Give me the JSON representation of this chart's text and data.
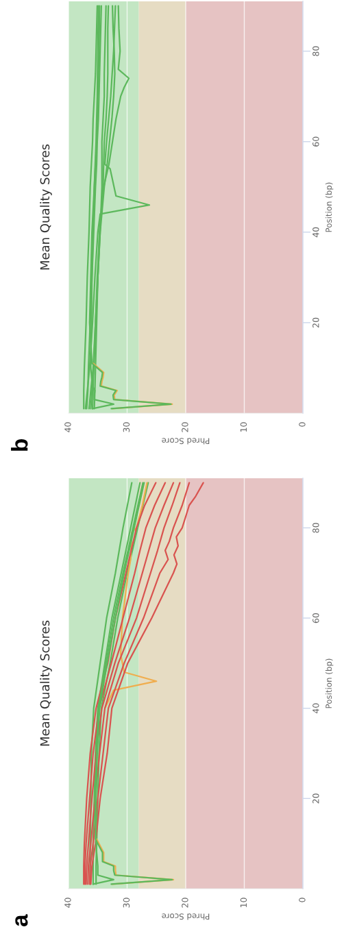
{
  "chart_data": [
    {
      "type": "line",
      "title": "Mean Quality Scores",
      "xlabel": "Phred Score",
      "ylabel": "Position (bp)",
      "annotations": [
        "b"
      ],
      "xlim": [
        40,
        0
      ],
      "ylim": [
        0,
        91
      ],
      "xticks": [
        0,
        10,
        20,
        30,
        40
      ],
      "yticks": [
        20,
        40,
        60,
        80
      ],
      "grid": "x",
      "bands": [
        {
          "axis": "x",
          "from": 28,
          "to": 40,
          "color": "#c3e6c3"
        },
        {
          "axis": "x",
          "from": 20,
          "to": 28,
          "color": "#e6dcc3"
        },
        {
          "axis": "x",
          "from": 0,
          "to": 20,
          "color": "#e6c3c3"
        }
      ],
      "series": [
        {
          "color": "#5cb85c",
          "x": [
            37.4,
            37.4,
            37.3,
            37.0,
            36.8,
            36.5,
            36.3,
            36.1,
            35.9,
            35.8,
            35.6,
            35.4,
            35.3,
            35.2,
            35.1
          ],
          "values": [
            1,
            5,
            10,
            20,
            30,
            40,
            50,
            55,
            60,
            65,
            70,
            75,
            80,
            85,
            90
          ]
        },
        {
          "color": "#5cb85c",
          "x": [
            36.9,
            36.7,
            36.6,
            36.3,
            36.0,
            35.7,
            35.4,
            35.2,
            35.1,
            34.9,
            34.8,
            34.7,
            34.6,
            34.5,
            34.4
          ],
          "values": [
            1,
            5,
            10,
            20,
            30,
            40,
            50,
            55,
            60,
            65,
            70,
            75,
            80,
            85,
            90
          ]
        },
        {
          "color": "#5cb85c",
          "x": [
            35.6,
            35.5,
            35.4,
            35.2,
            35.0,
            34.6,
            34.3,
            34.3,
            34.3,
            34.1,
            33.9,
            33.9,
            33.8,
            33.7,
            33.6
          ],
          "values": [
            1,
            5,
            10,
            20,
            30,
            40,
            50,
            55,
            60,
            65,
            70,
            75,
            80,
            85,
            90
          ]
        },
        {
          "color": "#5cb85c",
          "x": [
            36.5,
            36.2,
            35.8,
            35.4,
            35.0,
            34.7,
            34.1,
            34.0,
            33.9,
            33.6,
            33.4,
            33.3,
            33.3,
            33.3,
            33.2
          ],
          "values": [
            1,
            5,
            10,
            20,
            30,
            40,
            50,
            55,
            60,
            65,
            70,
            75,
            80,
            85,
            90
          ]
        },
        {
          "color": "#5cb85c",
          "x": [
            36.2,
            36.0,
            35.7,
            35.3,
            35.0,
            34.6,
            33.9,
            33.4,
            33.0,
            32.6,
            32.3,
            32.1,
            32.2,
            32.4,
            32.5
          ],
          "values": [
            1,
            5,
            10,
            20,
            30,
            40,
            50,
            55,
            60,
            65,
            70,
            75,
            80,
            85,
            90
          ]
        },
        {
          "color": "#5cb85c",
          "x": [
            35.9,
            35.7,
            35.4,
            35.1,
            34.7,
            34.0,
            33.1,
            32.5,
            31.9,
            31.1,
            30.5,
            29.7,
            31.5,
            31.2,
            31.4,
            31.5
          ],
          "values": [
            1,
            10,
            20,
            30,
            40,
            50,
            55,
            60,
            65,
            70,
            72,
            74,
            76,
            80,
            85,
            90
          ]
        },
        {
          "color": "#5cb85c",
          "x": [
            37.1,
            36.4,
            35.9,
            35.5,
            35.0,
            34.6,
            26.2,
            31.9,
            32.9,
            33.8,
            33.5,
            32.8,
            32.3,
            32.0
          ],
          "values": [
            1,
            10,
            20,
            30,
            40,
            44,
            46,
            48,
            54,
            55,
            60,
            70,
            80,
            90
          ]
        },
        {
          "color": "#f0ad4e",
          "x": [
            32.5,
            22.3,
            32.1,
            32.2,
            31.7,
            34.4,
            34.3,
            34.1,
            34.0,
            35.8
          ],
          "values": [
            1,
            2,
            3,
            4,
            5,
            6,
            7,
            8,
            9,
            11
          ]
        },
        {
          "color": "#5cb85c",
          "x": [
            32.7,
            22.5,
            32.3,
            32.4,
            31.9,
            34.6,
            34.5,
            34.3,
            34.2,
            36.0,
            36.4,
            36.2,
            36.0,
            35.6,
            35.2,
            35.0,
            34.8,
            34.7
          ],
          "values": [
            1,
            2,
            3,
            4,
            5,
            6,
            7,
            8,
            9,
            11,
            20,
            30,
            40,
            50,
            60,
            70,
            80,
            90
          ]
        },
        {
          "color": "#5cb85c",
          "x": [
            35.9,
            32.3,
            35.6,
            35.6,
            35.5,
            35.9,
            36.0,
            36.2,
            36.1,
            36.0,
            35.8,
            35.6,
            35.3,
            35.1,
            35.0,
            34.9
          ],
          "values": [
            1,
            2,
            3,
            4,
            5,
            6,
            7,
            10,
            20,
            30,
            40,
            50,
            60,
            70,
            80,
            90
          ]
        }
      ]
    },
    {
      "type": "line",
      "title": "Mean Quality Scores",
      "xlabel": "Phred Score",
      "ylabel": "Position (bp)",
      "annotations": [
        "a"
      ],
      "xlim": [
        40,
        0
      ],
      "ylim": [
        0,
        91
      ],
      "xticks": [
        0,
        10,
        20,
        30,
        40
      ],
      "yticks": [
        20,
        40,
        60,
        80
      ],
      "grid": "x",
      "bands": [
        {
          "axis": "x",
          "from": 28,
          "to": 40,
          "color": "#c3e6c3"
        },
        {
          "axis": "x",
          "from": 20,
          "to": 28,
          "color": "#e6dcc3"
        },
        {
          "axis": "x",
          "from": 0,
          "to": 20,
          "color": "#e6c3c3"
        }
      ],
      "series": [
        {
          "color": "#5cb85c",
          "x": [
            36.3,
            36.3,
            36.3,
            36.2,
            36.1,
            35.7,
            34.6,
            33.5,
            32.0,
            30.7,
            29.2
          ],
          "values": [
            1,
            5,
            10,
            20,
            30,
            40,
            50,
            60,
            70,
            80,
            90
          ]
        },
        {
          "color": "#5cb85c",
          "x": [
            35.8,
            35.8,
            35.8,
            35.6,
            35.4,
            35.0,
            33.8,
            32.6,
            31.0,
            29.4,
            27.8
          ],
          "values": [
            1,
            5,
            10,
            20,
            30,
            40,
            50,
            60,
            70,
            80,
            90
          ]
        },
        {
          "color": "#5cb85c",
          "x": [
            35.3,
            35.3,
            35.2,
            35.0,
            34.8,
            34.4,
            32.9,
            31.6,
            30.0,
            28.2,
            26.4
          ],
          "values": [
            1,
            5,
            10,
            20,
            30,
            40,
            50,
            60,
            70,
            80,
            90
          ]
        },
        {
          "color": "#f0ad4e",
          "x": [
            33.8,
            32.3,
            25.0,
            30.5,
            31.1,
            30.8,
            29.8,
            29.4,
            29.3,
            29.2,
            28.4,
            27.4,
            26.6
          ],
          "values": [
            40,
            44,
            46,
            48,
            52,
            60,
            70,
            73,
            76,
            79,
            80,
            85,
            90
          ]
        },
        {
          "color": "#d9534f",
          "x": [
            37.4,
            37.4,
            37.3,
            36.9,
            36.3,
            35.3,
            33.3,
            32.0,
            30.2,
            29.3,
            28.4,
            27.0,
            25.1
          ],
          "values": [
            1,
            5,
            10,
            20,
            30,
            40,
            50,
            60,
            70,
            75,
            80,
            85,
            90
          ]
        },
        {
          "color": "#d9534f",
          "x": [
            37.2,
            37.2,
            37.0,
            36.4,
            35.8,
            34.8,
            32.7,
            30.7,
            28.7,
            27.8,
            26.8,
            25.3,
            23.5
          ],
          "values": [
            1,
            5,
            10,
            20,
            30,
            40,
            50,
            60,
            70,
            75,
            80,
            85,
            90
          ]
        },
        {
          "color": "#d9534f",
          "x": [
            37.0,
            36.9,
            36.6,
            36.0,
            35.3,
            34.3,
            32.1,
            29.6,
            27.4,
            26.3,
            25.2,
            23.7,
            22.1
          ],
          "values": [
            1,
            5,
            10,
            20,
            30,
            40,
            50,
            60,
            70,
            75,
            80,
            85,
            90
          ]
        },
        {
          "color": "#d9534f",
          "x": [
            36.7,
            36.6,
            36.2,
            35.5,
            34.7,
            33.8,
            31.5,
            28.4,
            26.0,
            24.8,
            23.7,
            22.3,
            21.0
          ],
          "values": [
            1,
            5,
            10,
            20,
            30,
            40,
            50,
            60,
            70,
            75,
            80,
            85,
            90
          ]
        },
        {
          "color": "#d9534f",
          "x": [
            36.4,
            36.3,
            35.8,
            35.0,
            34.1,
            33.2,
            30.5,
            27.2,
            24.4,
            23.0,
            23.5,
            22.8,
            22.1,
            20.6,
            19.4
          ],
          "values": [
            1,
            5,
            10,
            20,
            30,
            40,
            50,
            60,
            70,
            73,
            75,
            77,
            80,
            85,
            90
          ]
        },
        {
          "color": "#d9534f",
          "x": [
            36.2,
            36.0,
            35.4,
            34.6,
            33.4,
            32.6,
            29.9,
            25.8,
            22.1,
            21.5,
            22.0,
            21.3,
            21.6,
            20.6,
            19.4,
            18.3,
            17.0
          ],
          "values": [
            1,
            5,
            10,
            20,
            30,
            40,
            50,
            60,
            70,
            72,
            74,
            76,
            78,
            80,
            85,
            87,
            90
          ]
        },
        {
          "color": "#f0ad4e",
          "x": [
            32.5,
            22.1,
            31.9,
            32.0,
            32.0,
            34.0,
            34.0,
            34.0,
            34.4,
            35.2
          ],
          "values": [
            1,
            2,
            3,
            4,
            5,
            6,
            7,
            8,
            9,
            11
          ]
        },
        {
          "color": "#5cb85c",
          "x": [
            32.7,
            22.3,
            32.1,
            32.3,
            32.3,
            34.2,
            34.2,
            34.2,
            34.6,
            35.4,
            35.3,
            35.1,
            34.7,
            33.4,
            32.0,
            30.5,
            28.8,
            27.1
          ],
          "values": [
            1,
            2,
            3,
            4,
            5,
            6,
            7,
            8,
            9,
            11,
            20,
            30,
            40,
            50,
            60,
            70,
            80,
            90
          ]
        },
        {
          "color": "#5cb85c",
          "x": [
            35.8,
            32.3,
            35.0,
            35.0,
            35.2,
            35.3,
            35.5,
            35.2,
            34.9,
            33.6,
            32.3,
            30.7,
            29.0,
            27.3
          ],
          "values": [
            1,
            2,
            3,
            5,
            8,
            10,
            20,
            30,
            40,
            50,
            60,
            70,
            80,
            90
          ]
        }
      ]
    }
  ]
}
